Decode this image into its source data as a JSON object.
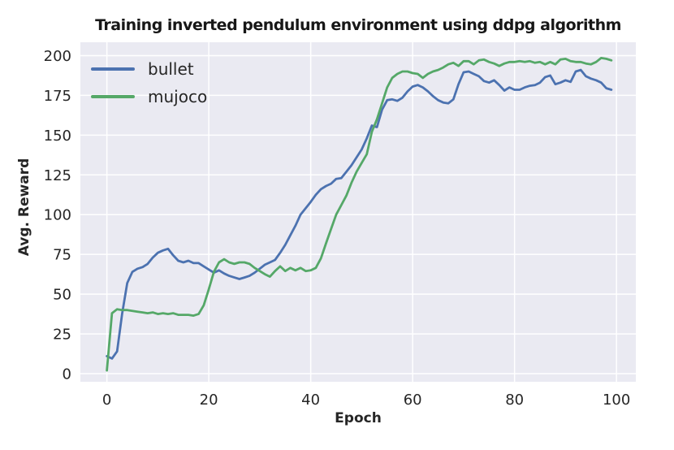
{
  "title": "Training inverted pendulum environment using ddpg algorithm",
  "chart_data": {
    "type": "line",
    "title": "Training inverted pendulum environment using ddpg algorithm",
    "xlabel": "Epoch",
    "ylabel": "Avg. Reward",
    "grid": true,
    "legend_position": "upper-left",
    "plot_background": "#eaeaf2",
    "grid_color": "#ffffff",
    "tick_color": "#262626",
    "xlim": [
      -5.2,
      103.8
    ],
    "ylim": [
      -5.1,
      208.4
    ],
    "x_ticks": [
      0,
      20,
      40,
      60,
      80,
      100
    ],
    "y_ticks": [
      0,
      25,
      50,
      75,
      100,
      125,
      150,
      175,
      200
    ],
    "x_start": 0,
    "x_step": 1,
    "series": [
      {
        "name": "bullet",
        "color": "#4c72b0",
        "values": [
          11,
          9.5,
          14,
          38,
          57,
          64,
          66,
          67,
          69,
          73,
          76,
          77.5,
          78.5,
          74.5,
          71,
          70,
          71,
          69.5,
          69.5,
          67.5,
          65.5,
          63.5,
          65,
          63,
          61.5,
          60.5,
          59.5,
          60.5,
          61.5,
          63.5,
          66,
          68.5,
          70,
          71.5,
          76,
          81,
          87,
          93,
          100,
          104,
          108,
          112.5,
          116,
          118,
          119.5,
          122.5,
          123,
          127,
          131,
          136,
          141,
          148,
          156,
          155,
          166,
          172,
          172.5,
          171.5,
          173.5,
          177.5,
          180.5,
          181.5,
          180,
          177.5,
          174.5,
          172,
          170.5,
          170,
          172.5,
          182,
          189.5,
          190,
          188.5,
          187,
          184,
          183,
          184.5,
          181.5,
          178,
          180,
          178.5,
          178.5,
          180,
          181,
          181.5,
          183,
          186.5,
          187.5,
          182,
          183,
          184.5,
          183.5,
          190,
          191,
          187,
          185.5,
          184.5,
          183,
          179.5,
          178.5
        ]
      },
      {
        "name": "mujoco",
        "color": "#55a868",
        "values": [
          2,
          38,
          40.5,
          40,
          40,
          39.5,
          39,
          38.5,
          38,
          38.5,
          37.5,
          38,
          37.5,
          38,
          37,
          37,
          37,
          36.5,
          37.5,
          43,
          53,
          64,
          70,
          72,
          70,
          69,
          70,
          70,
          69,
          66.5,
          64.5,
          62.5,
          61,
          64.5,
          67.5,
          64.5,
          66.5,
          65,
          66.5,
          64.5,
          65,
          66.5,
          72.5,
          82,
          91,
          100,
          106,
          112,
          120,
          127,
          132.5,
          138,
          152,
          160,
          170,
          180,
          186,
          188.5,
          190,
          190,
          189,
          188.5,
          186,
          188.5,
          190,
          191,
          192.5,
          194.5,
          195.5,
          193.5,
          196.5,
          196.5,
          194.5,
          197,
          197.5,
          196,
          195,
          193.5,
          195,
          196,
          196,
          196.5,
          196,
          196.5,
          195.5,
          196,
          194.5,
          196,
          194.5,
          197.5,
          198,
          196.5,
          196,
          196,
          195,
          194.5,
          196,
          198.5,
          198,
          197
        ]
      }
    ]
  }
}
